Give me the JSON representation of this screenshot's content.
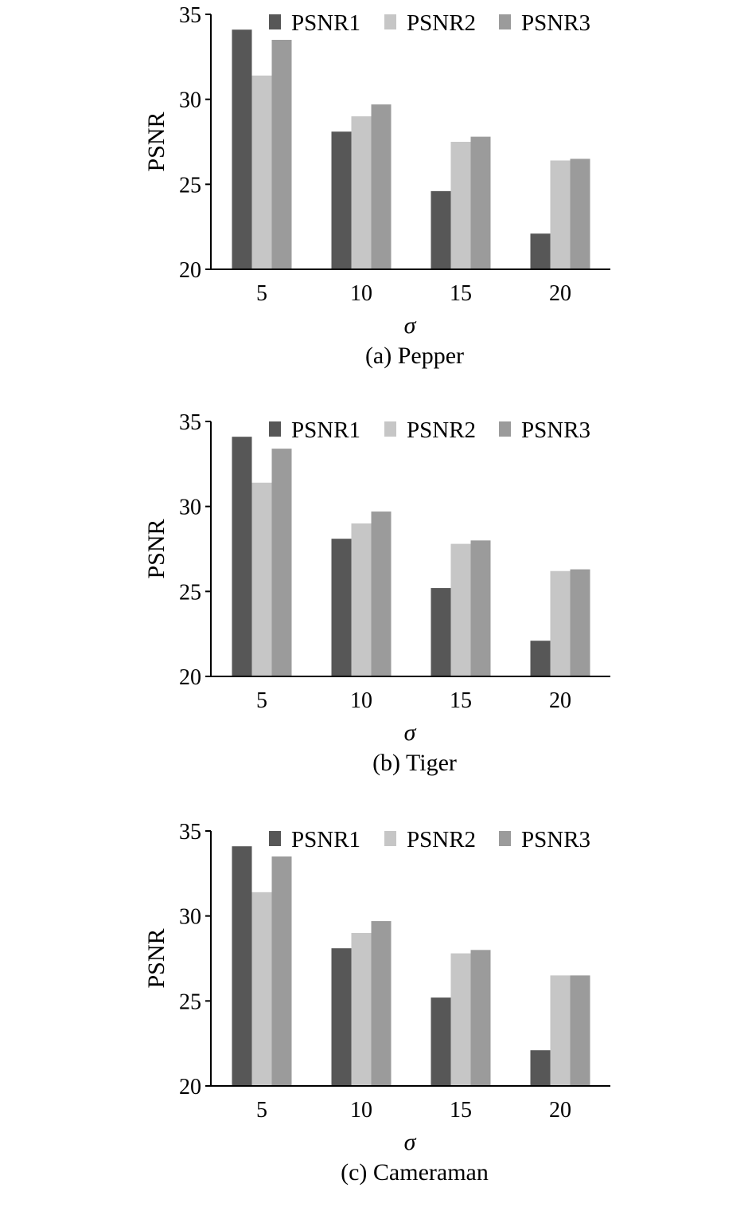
{
  "colors": {
    "PSNR1": "#575757",
    "PSNR2": "#c6c6c6",
    "PSNR3": "#9b9b9b",
    "axis": "#000000"
  },
  "chart_data": [
    {
      "type": "bar",
      "caption": "(a) Pepper",
      "categories": [
        "5",
        "10",
        "15",
        "20"
      ],
      "xlabel": "σ",
      "ylabel": "PSNR",
      "ylim": [
        20,
        35
      ],
      "yticks": [
        "20",
        "25",
        "30",
        "35"
      ],
      "legend_position": "top",
      "grid": false,
      "series": [
        {
          "name": "PSNR1",
          "values": [
            34.1,
            28.1,
            24.6,
            22.1
          ]
        },
        {
          "name": "PSNR2",
          "values": [
            31.4,
            29.0,
            27.5,
            26.4
          ]
        },
        {
          "name": "PSNR3",
          "values": [
            33.5,
            29.7,
            27.8,
            26.5
          ]
        }
      ]
    },
    {
      "type": "bar",
      "caption": "(b) Tiger",
      "categories": [
        "5",
        "10",
        "15",
        "20"
      ],
      "xlabel": "σ",
      "ylabel": "PSNR",
      "ylim": [
        20,
        35
      ],
      "yticks": [
        "20",
        "25",
        "30",
        "35"
      ],
      "legend_position": "top",
      "grid": false,
      "series": [
        {
          "name": "PSNR1",
          "values": [
            34.1,
            28.1,
            25.2,
            22.1
          ]
        },
        {
          "name": "PSNR2",
          "values": [
            31.4,
            29.0,
            27.8,
            26.2
          ]
        },
        {
          "name": "PSNR3",
          "values": [
            33.4,
            29.7,
            28.0,
            26.3
          ]
        }
      ]
    },
    {
      "type": "bar",
      "caption": "(c) Cameraman",
      "categories": [
        "5",
        "10",
        "15",
        "20"
      ],
      "xlabel": "σ",
      "ylabel": "PSNR",
      "ylim": [
        20,
        35
      ],
      "yticks": [
        "20",
        "25",
        "30",
        "35"
      ],
      "legend_position": "top",
      "grid": false,
      "series": [
        {
          "name": "PSNR1",
          "values": [
            34.1,
            28.1,
            25.2,
            22.1
          ]
        },
        {
          "name": "PSNR2",
          "values": [
            31.4,
            29.0,
            27.8,
            26.5
          ]
        },
        {
          "name": "PSNR3",
          "values": [
            33.5,
            29.7,
            28.0,
            26.5
          ]
        }
      ]
    }
  ]
}
